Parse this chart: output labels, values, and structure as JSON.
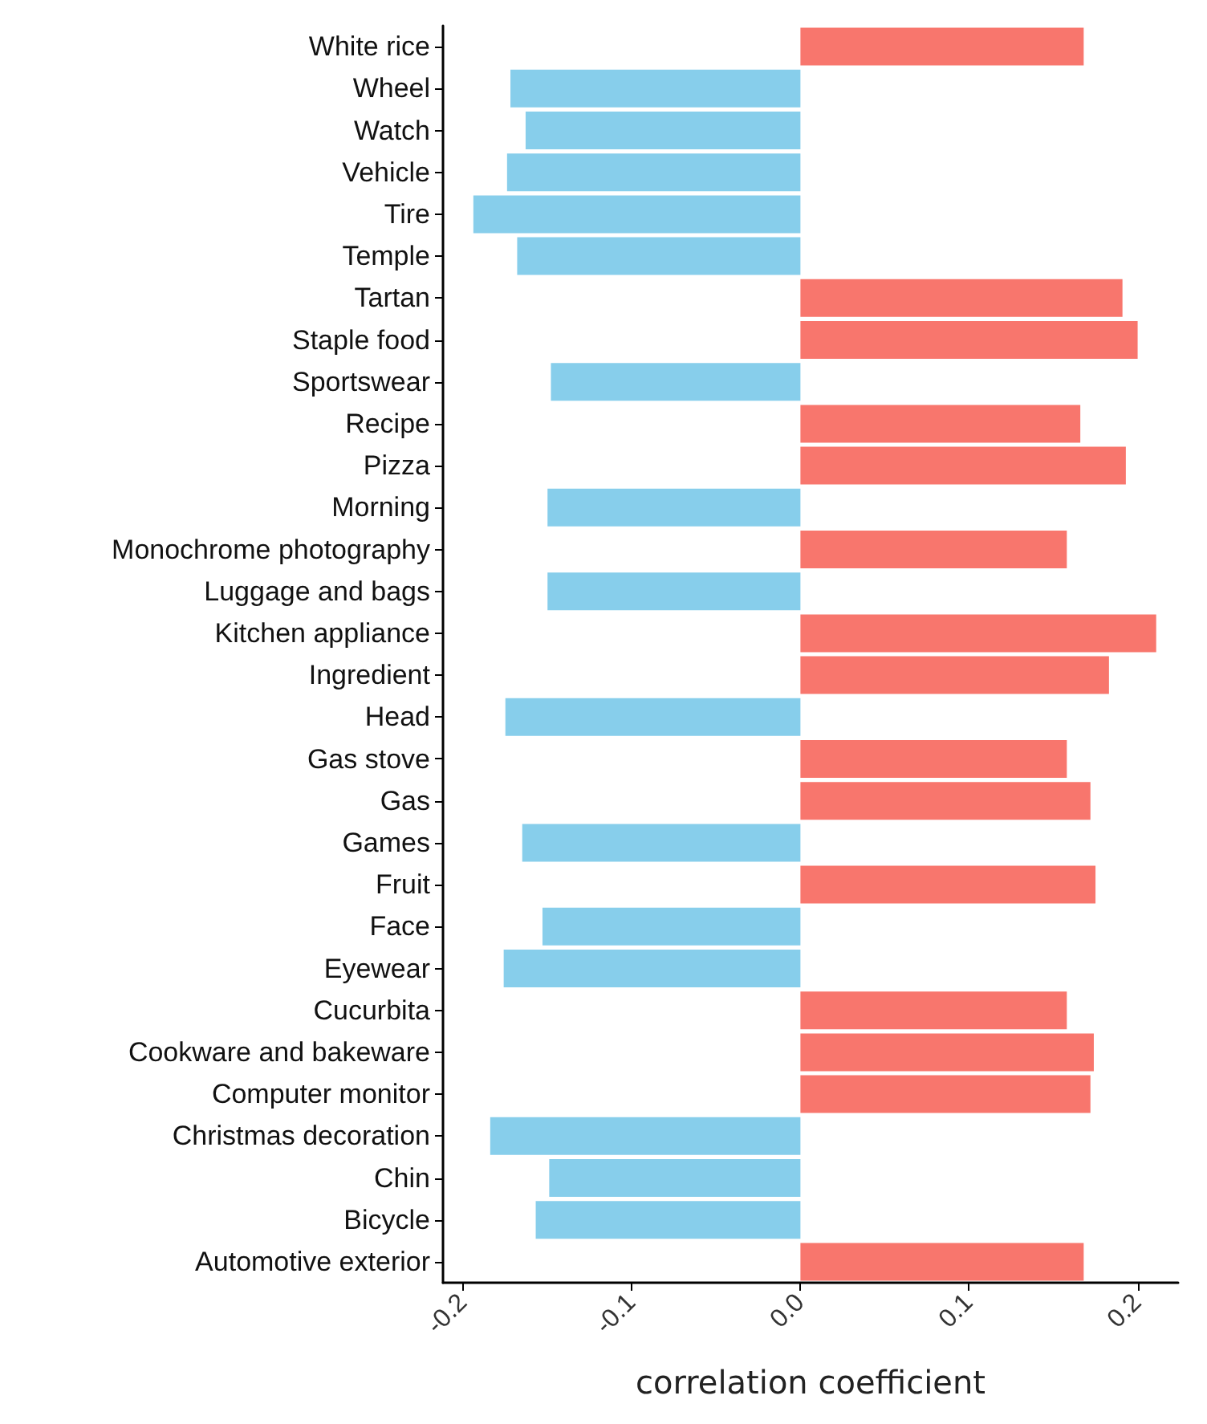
{
  "chart_data": {
    "type": "bar",
    "orientation": "horizontal",
    "xlabel": "correlation coefficient",
    "categories": [
      "White rice",
      "Wheel",
      "Watch",
      "Vehicle",
      "Tire",
      "Temple",
      "Tartan",
      "Staple food",
      "Sportswear",
      "Recipe",
      "Pizza",
      "Morning",
      "Monochrome photography",
      "Luggage and bags",
      "Kitchen appliance",
      "Ingredient",
      "Head",
      "Gas stove",
      "Gas",
      "Games",
      "Fruit",
      "Face",
      "Eyewear",
      "Cucurbita",
      "Cookware and bakeware",
      "Computer monitor",
      "Christmas decoration",
      "Chin",
      "Bicycle",
      "Automotive exterior"
    ],
    "values": [
      0.168,
      -0.172,
      -0.163,
      -0.174,
      -0.194,
      -0.168,
      0.191,
      0.2,
      -0.148,
      0.166,
      0.193,
      -0.15,
      0.158,
      -0.15,
      0.211,
      0.183,
      -0.175,
      0.158,
      0.172,
      -0.165,
      0.175,
      -0.153,
      -0.176,
      0.158,
      0.174,
      0.172,
      -0.184,
      -0.149,
      -0.157,
      0.168
    ],
    "colors": [
      "#f8766d",
      "#87ceeb",
      "#87ceeb",
      "#87ceeb",
      "#87ceeb",
      "#87ceeb",
      "#f8766d",
      "#f8766d",
      "#87ceeb",
      "#f8766d",
      "#f8766d",
      "#87ceeb",
      "#f8766d",
      "#87ceeb",
      "#f8766d",
      "#f8766d",
      "#87ceeb",
      "#f8766d",
      "#f8766d",
      "#87ceeb",
      "#f8766d",
      "#87ceeb",
      "#87ceeb",
      "#f8766d",
      "#f8766d",
      "#f8766d",
      "#87ceeb",
      "#87ceeb",
      "#87ceeb",
      "#f8766d"
    ],
    "xlim": [
      -0.212,
      0.224
    ],
    "xticks": [
      -0.2,
      -0.1,
      {
        "value": 0,
        "label": "0.0"
      },
      0.1,
      0.2
    ],
    "grid": false
  }
}
